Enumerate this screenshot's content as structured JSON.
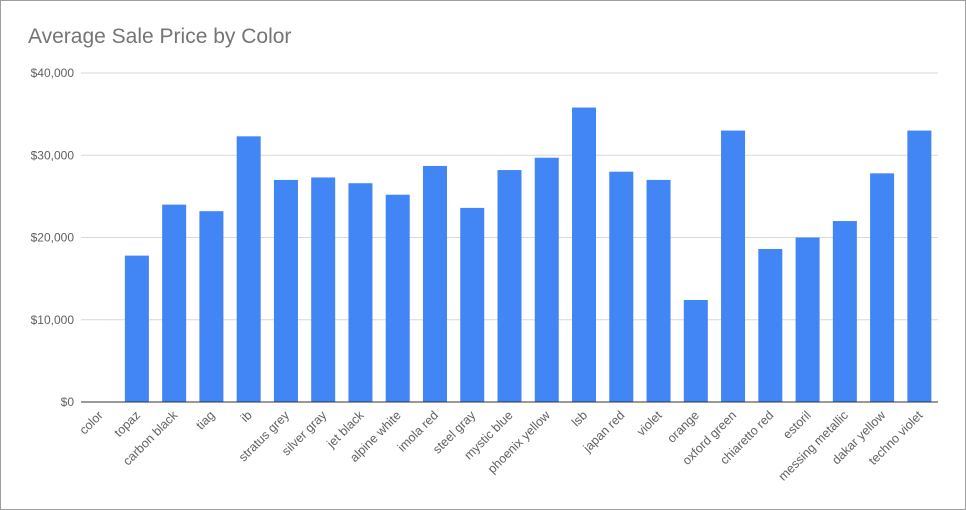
{
  "chart_data": {
    "type": "bar",
    "title": "Average Sale Price by Color",
    "xlabel": "",
    "ylabel": "",
    "ylim": [
      0,
      40000
    ],
    "y_ticks": [
      0,
      10000,
      20000,
      30000,
      40000
    ],
    "y_tick_labels": [
      "$0",
      "$10,000",
      "$20,000",
      "$30,000",
      "$40,000"
    ],
    "grid": true,
    "legend": "none",
    "bar_color": "#4285f4",
    "categories": [
      "color",
      "topaz",
      "carbon black",
      "tiag",
      "ib",
      "stratus grey",
      "silver gray",
      "jet black",
      "alpine white",
      "imola red",
      "steel gray",
      "mystic blue",
      "phoenix yellow",
      "lsb",
      "japan red",
      "violet",
      "orange",
      "oxford green",
      "chiaretto red",
      "estoril",
      "messing metallic",
      "dakar yellow",
      "techno violet"
    ],
    "values": [
      0,
      17800,
      24000,
      23200,
      32300,
      27000,
      27300,
      26600,
      25200,
      28700,
      23600,
      28200,
      29700,
      35800,
      28000,
      27000,
      12400,
      33000,
      18600,
      20000,
      22000,
      27800,
      33000
    ]
  }
}
